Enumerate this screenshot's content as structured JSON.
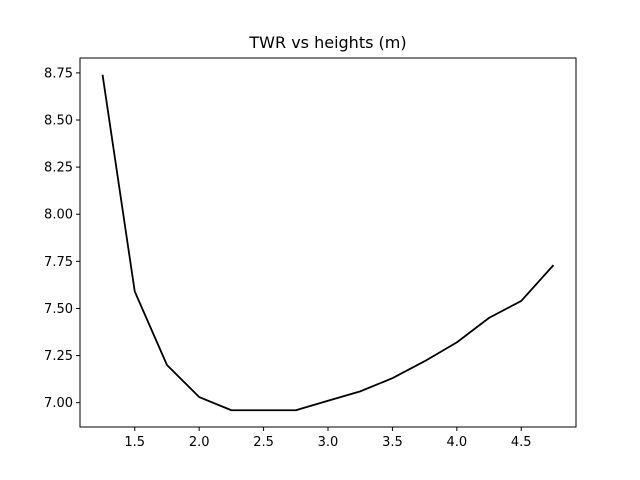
{
  "chart_data": {
    "type": "line",
    "title": "TWR vs heights (m)",
    "xlabel": "",
    "ylabel": "",
    "x": [
      1.25,
      1.5,
      1.75,
      2.0,
      2.25,
      2.5,
      2.75,
      3.0,
      3.25,
      3.5,
      3.75,
      4.0,
      4.25,
      4.5,
      4.75
    ],
    "series": [
      {
        "color": "#000000",
        "values": [
          8.74,
          7.59,
          7.2,
          7.03,
          6.96,
          6.96,
          6.96,
          7.01,
          7.06,
          7.13,
          7.22,
          7.32,
          7.45,
          7.54,
          7.73
        ]
      }
    ],
    "xlim": [
      1.075,
      4.925
    ],
    "ylim": [
      6.871,
      8.829
    ],
    "xticks": [
      1.5,
      2.0,
      2.5,
      3.0,
      3.5,
      4.0,
      4.5
    ],
    "xtick_labels": [
      "1.5",
      "2.0",
      "2.5",
      "3.0",
      "3.5",
      "4.0",
      "4.5"
    ],
    "yticks": [
      7.0,
      7.25,
      7.5,
      7.75,
      8.0,
      8.25,
      8.5,
      8.75
    ],
    "ytick_labels": [
      "7.00",
      "7.25",
      "7.50",
      "7.75",
      "8.00",
      "8.25",
      "8.50",
      "8.75"
    ],
    "grid": false,
    "legend": "none"
  }
}
